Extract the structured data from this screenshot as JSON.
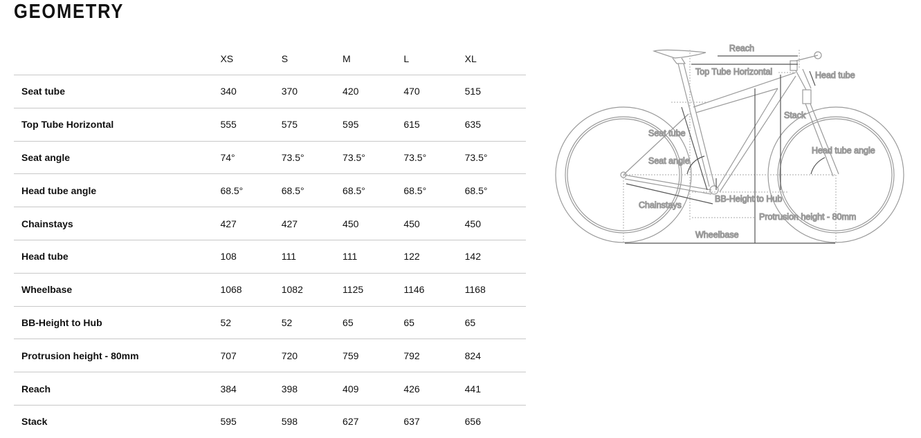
{
  "title": "GEOMETRY",
  "sizes": [
    "XS",
    "S",
    "M",
    "L",
    "XL"
  ],
  "rows": [
    {
      "label": "Seat tube",
      "values": [
        "340",
        "370",
        "420",
        "470",
        "515"
      ]
    },
    {
      "label": "Top Tube Horizontal",
      "values": [
        "555",
        "575",
        "595",
        "615",
        "635"
      ]
    },
    {
      "label": "Seat angle",
      "values": [
        "74°",
        "73.5°",
        "73.5°",
        "73.5°",
        "73.5°"
      ]
    },
    {
      "label": "Head tube angle",
      "values": [
        "68.5°",
        "68.5°",
        "68.5°",
        "68.5°",
        "68.5°"
      ]
    },
    {
      "label": "Chainstays",
      "values": [
        "427",
        "427",
        "450",
        "450",
        "450"
      ]
    },
    {
      "label": "Head tube",
      "values": [
        "108",
        "111",
        "111",
        "122",
        "142"
      ]
    },
    {
      "label": "Wheelbase",
      "values": [
        "1068",
        "1082",
        "1125",
        "1146",
        "1168"
      ]
    },
    {
      "label": "BB-Height to Hub",
      "values": [
        "52",
        "52",
        "65",
        "65",
        "65"
      ]
    },
    {
      "label": "Protrusion height - 80mm",
      "values": [
        "707",
        "720",
        "759",
        "792",
        "824"
      ]
    },
    {
      "label": "Reach",
      "values": [
        "384",
        "398",
        "409",
        "426",
        "441"
      ]
    },
    {
      "label": "Stack",
      "values": [
        "595",
        "598",
        "627",
        "637",
        "656"
      ]
    }
  ],
  "diagram": {
    "labels": {
      "reach": "Reach",
      "top_tube": "Top Tube Horizontal",
      "head_tube": "Head tube",
      "stack": "Stack",
      "seat_tube": "Seat tube",
      "seat_angle": "Seat angle",
      "head_tube_angle": "Head tube angle",
      "chainstays": "Chainstays",
      "bb_height": "BB-Height to Hub",
      "protrusion": "Protrusion height - 80mm",
      "wheelbase": "Wheelbase"
    }
  }
}
